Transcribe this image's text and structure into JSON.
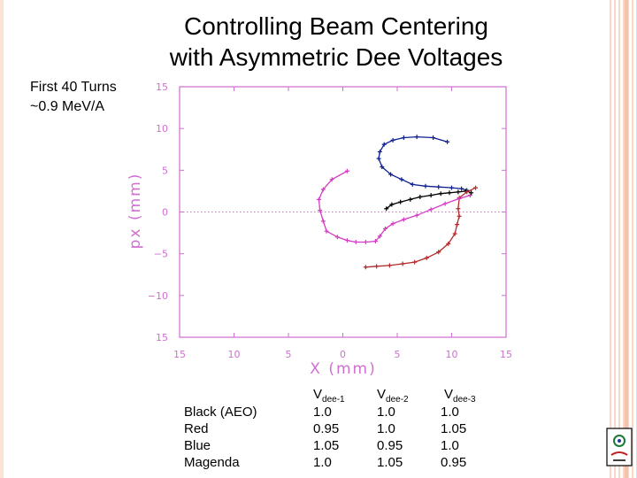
{
  "slide": {
    "title_line1": "Controlling Beam Centering",
    "title_line2": "with Asymmetric Dee Voltages",
    "subtitle_line1": "First 40 Turns",
    "subtitle_line2": "~0.9 MeV/A"
  },
  "chart_data": {
    "type": "scatter",
    "xlabel": "X (mm)",
    "ylabel": "px (mm)",
    "xlim": [
      -15,
      15
    ],
    "ylim": [
      -15,
      15
    ],
    "x_ticks": [
      "15",
      "10",
      "5",
      "0",
      "5",
      "10",
      "15"
    ],
    "y_ticks": [
      "15",
      "10",
      "5",
      "0",
      "−5",
      "−10",
      "15"
    ],
    "zero_line": "dotted horizontal at px = 0",
    "axis_color": "#d06fd0",
    "series": [
      {
        "color": "#0d1f8f",
        "points": [
          [
            9.6,
            8.4
          ],
          [
            8.3,
            8.9
          ],
          [
            6.8,
            9.0
          ],
          [
            5.6,
            8.9
          ],
          [
            4.6,
            8.6
          ],
          [
            3.8,
            8.1
          ],
          [
            3.4,
            7.2
          ],
          [
            3.3,
            6.4
          ],
          [
            3.6,
            5.4
          ],
          [
            4.4,
            4.5
          ],
          [
            5.4,
            3.9
          ],
          [
            6.4,
            3.3
          ],
          [
            7.6,
            3.1
          ],
          [
            8.8,
            3.0
          ],
          [
            10.0,
            2.9
          ],
          [
            10.9,
            2.8
          ],
          [
            11.4,
            2.6
          ]
        ]
      },
      {
        "color": "#000000",
        "points": [
          [
            4.0,
            0.4
          ],
          [
            4.5,
            0.9
          ],
          [
            5.3,
            1.2
          ],
          [
            6.2,
            1.5
          ],
          [
            7.1,
            1.8
          ],
          [
            8.1,
            2.0
          ],
          [
            9.0,
            2.2
          ],
          [
            9.8,
            2.3
          ],
          [
            10.6,
            2.4
          ],
          [
            11.3,
            2.5
          ],
          [
            11.8,
            2.3
          ]
        ]
      },
      {
        "color": "#b22a2a",
        "points": [
          [
            12.2,
            2.9
          ],
          [
            11.4,
            2.4
          ],
          [
            10.7,
            1.7
          ],
          [
            10.6,
            0.4
          ],
          [
            10.7,
            -0.5
          ],
          [
            10.5,
            -1.5
          ],
          [
            10.3,
            -2.6
          ],
          [
            9.7,
            -3.8
          ],
          [
            8.8,
            -4.8
          ],
          [
            7.7,
            -5.5
          ],
          [
            6.6,
            -6.0
          ],
          [
            5.5,
            -6.2
          ],
          [
            4.3,
            -6.4
          ],
          [
            3.1,
            -6.5
          ],
          [
            2.1,
            -6.6
          ]
        ]
      },
      {
        "color": "#d63bc4",
        "points": [
          [
            0.4,
            4.9
          ],
          [
            -1.0,
            3.9
          ],
          [
            -1.8,
            2.7
          ],
          [
            -2.2,
            1.5
          ],
          [
            -2.1,
            0.2
          ],
          [
            -1.8,
            -1.1
          ],
          [
            -1.5,
            -2.3
          ],
          [
            -0.5,
            -3.0
          ],
          [
            0.4,
            -3.4
          ],
          [
            1.2,
            -3.6
          ],
          [
            2.1,
            -3.6
          ],
          [
            3.0,
            -3.5
          ],
          [
            3.4,
            -2.9
          ],
          [
            3.9,
            -2.0
          ],
          [
            4.6,
            -1.4
          ],
          [
            5.6,
            -0.9
          ],
          [
            6.8,
            -0.4
          ],
          [
            8.1,
            0.3
          ],
          [
            9.4,
            1.0
          ],
          [
            10.7,
            1.6
          ],
          [
            11.7,
            2.0
          ]
        ]
      }
    ]
  },
  "voltages": {
    "headers": [
      {
        "base": "V",
        "sub": "dee-1"
      },
      {
        "base": "V",
        "sub": "dee-2"
      },
      {
        "base": "V",
        "sub": "dee-3"
      }
    ],
    "labels": [
      "Black (AEO)",
      "Red",
      "Blue",
      "Magenda"
    ],
    "vdee1": [
      "1.0",
      "0.95",
      "1.05",
      "1.0"
    ],
    "vdee2": [
      "1.0",
      "1.0",
      "0.95",
      "1.05"
    ],
    "vdee3": [
      "1.0",
      "1.05",
      "1.0",
      "0.95"
    ]
  }
}
